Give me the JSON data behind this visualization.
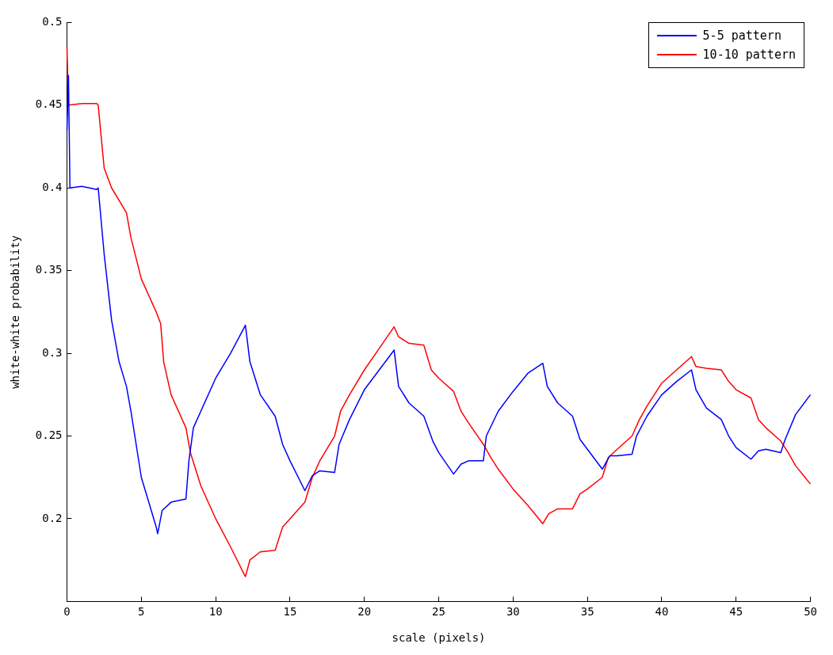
{
  "chart_data": {
    "type": "line",
    "xlabel": "scale (pixels)",
    "ylabel": "white-white probability",
    "xlim": [
      0,
      50
    ],
    "xticks": [
      0,
      5,
      10,
      15,
      20,
      25,
      30,
      35,
      40,
      45,
      50
    ],
    "ylim": [
      0.15,
      0.5
    ],
    "yticks": [
      0.2,
      0.25,
      0.3,
      0.35,
      0.4,
      0.45,
      0.5
    ],
    "legend": "top right",
    "grid": false,
    "marker": "none",
    "line_style": "solid",
    "series": [
      {
        "name": "5-5 pattern",
        "color": "#0000ff",
        "x": [
          0,
          0.1,
          0.2,
          1,
          2,
          2.1,
          2.5,
          3,
          3.5,
          4,
          4.3,
          5,
          5.5,
          6,
          6.1,
          6.4,
          7,
          8,
          8.2,
          8.5,
          9,
          10,
          11,
          12,
          12.3,
          13,
          14,
          14.5,
          15,
          16,
          16.5,
          17,
          18,
          18.3,
          19,
          20,
          21,
          22,
          22.3,
          23,
          24,
          24.6,
          25,
          26,
          26.5,
          27,
          28,
          28.2,
          29,
          30,
          31,
          32,
          32.3,
          33,
          34,
          34.5,
          35,
          36,
          36.5,
          37,
          38,
          38.3,
          39,
          40,
          41,
          42,
          42.3,
          43,
          44,
          44.5,
          45,
          46,
          46.5,
          47,
          48,
          48.3,
          49,
          50
        ],
        "values": [
          0.435,
          0.468,
          0.4,
          0.401,
          0.399,
          0.4,
          0.36,
          0.32,
          0.295,
          0.28,
          0.265,
          0.225,
          0.21,
          0.195,
          0.191,
          0.205,
          0.21,
          0.212,
          0.235,
          0.255,
          0.265,
          0.285,
          0.3,
          0.317,
          0.295,
          0.275,
          0.262,
          0.245,
          0.235,
          0.217,
          0.226,
          0.229,
          0.228,
          0.245,
          0.26,
          0.278,
          0.29,
          0.302,
          0.28,
          0.27,
          0.262,
          0.247,
          0.24,
          0.227,
          0.233,
          0.235,
          0.235,
          0.25,
          0.265,
          0.277,
          0.288,
          0.294,
          0.28,
          0.27,
          0.262,
          0.248,
          0.242,
          0.23,
          0.238,
          0.238,
          0.239,
          0.25,
          0.262,
          0.275,
          0.283,
          0.29,
          0.278,
          0.267,
          0.26,
          0.25,
          0.243,
          0.236,
          0.241,
          0.242,
          0.24,
          0.248,
          0.263,
          0.275
        ]
      },
      {
        "name": "10-10 pattern",
        "color": "#ff0000",
        "x": [
          0,
          0.1,
          1,
          2,
          2.1,
          2.5,
          3,
          4,
          4.3,
          5,
          6,
          6.3,
          6.5,
          7,
          8,
          8.3,
          9,
          10,
          11,
          12,
          12.3,
          13,
          14,
          14.5,
          15,
          16,
          16.5,
          17,
          18,
          18.4,
          19,
          20,
          21,
          22,
          22.3,
          23,
          24,
          24.5,
          25,
          26,
          26.5,
          27,
          28,
          28.5,
          29,
          30,
          31,
          32,
          32.4,
          33,
          34,
          34.5,
          35,
          36,
          36.4,
          37,
          38,
          38.5,
          39,
          40,
          41,
          42,
          42.3,
          43,
          44,
          44.5,
          45,
          46,
          46.5,
          47,
          48,
          48.5,
          49,
          50
        ],
        "values": [
          0.485,
          0.45,
          0.451,
          0.451,
          0.45,
          0.412,
          0.4,
          0.385,
          0.37,
          0.345,
          0.325,
          0.318,
          0.295,
          0.275,
          0.255,
          0.24,
          0.22,
          0.2,
          0.183,
          0.165,
          0.175,
          0.18,
          0.181,
          0.195,
          0.2,
          0.21,
          0.225,
          0.235,
          0.25,
          0.265,
          0.275,
          0.29,
          0.303,
          0.316,
          0.31,
          0.306,
          0.305,
          0.29,
          0.285,
          0.277,
          0.265,
          0.258,
          0.245,
          0.237,
          0.23,
          0.218,
          0.208,
          0.197,
          0.203,
          0.206,
          0.206,
          0.215,
          0.218,
          0.225,
          0.237,
          0.242,
          0.25,
          0.26,
          0.268,
          0.282,
          0.29,
          0.298,
          0.292,
          0.291,
          0.29,
          0.283,
          0.278,
          0.273,
          0.26,
          0.255,
          0.247,
          0.24,
          0.232,
          0.221
        ]
      }
    ]
  }
}
